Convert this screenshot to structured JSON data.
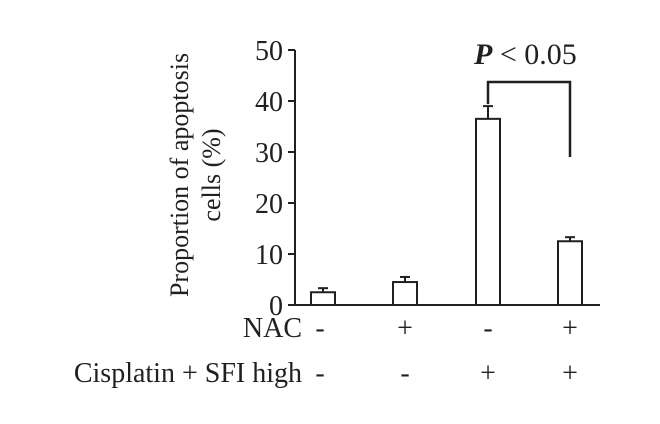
{
  "chart_data": {
    "type": "bar",
    "ylabel_lines": [
      "Proportion of apoptosis",
      "cells (%)"
    ],
    "ylim": [
      0,
      50
    ],
    "yticks": [
      "0",
      "10",
      "20",
      "30",
      "40",
      "50"
    ],
    "values": [
      2.5,
      4.5,
      36.5,
      12.5
    ],
    "errors": [
      0.8,
      1.0,
      2.5,
      0.8
    ],
    "conditions": [
      {
        "label": "NAC",
        "levels": [
          "-",
          "+",
          "-",
          "+"
        ]
      },
      {
        "label": "Cisplatin + SFI high",
        "levels": [
          "-",
          "-",
          "+",
          "+"
        ]
      }
    ],
    "significance": {
      "from_bar": 2,
      "to_bar": 3,
      "prefix": "P",
      "text": " < 0.05"
    },
    "colors": {
      "bar_fill": "#ffffff",
      "ink": "#231f20"
    }
  }
}
